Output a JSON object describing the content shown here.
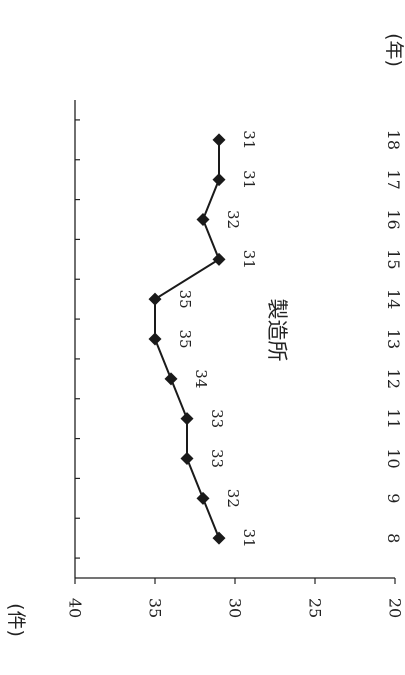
{
  "chart_data": {
    "type": "line",
    "title": "製造所",
    "xlabel": "(年)",
    "ylabel": "(件)",
    "categories": [
      "8",
      "9",
      "10",
      "11",
      "12",
      "13",
      "14",
      "15",
      "16",
      "17",
      "18"
    ],
    "series": [
      {
        "values": [
          31,
          32,
          33,
          33,
          34,
          35,
          35,
          31,
          32,
          31,
          31
        ]
      }
    ],
    "ylim": [
      20,
      40
    ],
    "yticks": [
      "20",
      "25",
      "30",
      "35",
      "40"
    ],
    "marker": "diamond",
    "line_color": "#1a1a1a",
    "orientation": "rotated 90° clockwise",
    "grid": false
  }
}
